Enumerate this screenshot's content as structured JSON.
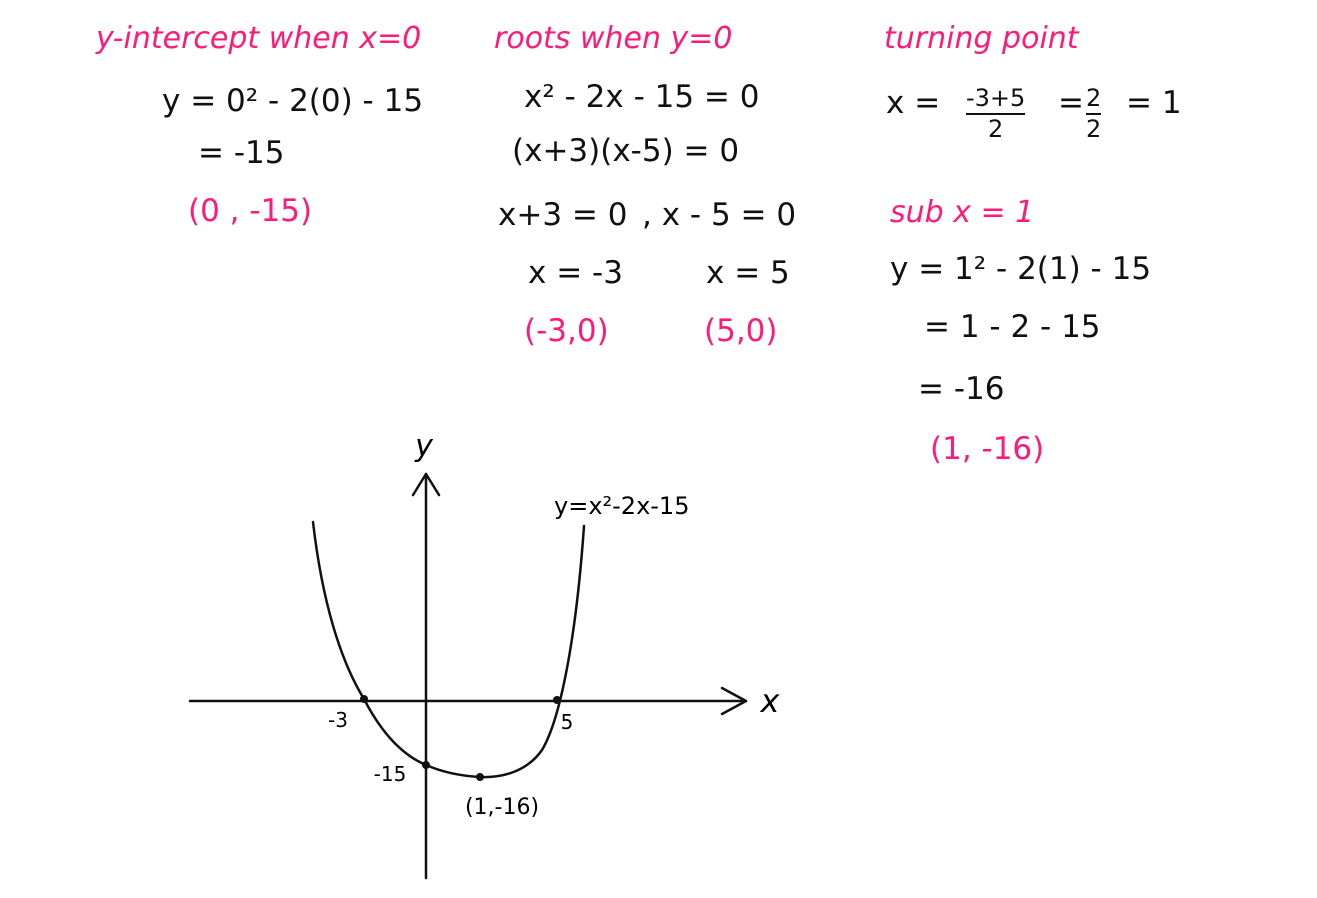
{
  "colors": {
    "accent": "#ff1a7a",
    "ink": "#111111"
  },
  "y_intercept": {
    "heading": "y-intercept when x=0",
    "line1": "y = 0² - 2(0) - 15",
    "line2": "= -15",
    "answer": "(0 , -15)"
  },
  "roots": {
    "heading": "roots when y=0",
    "line1": "x² - 2x - 15 = 0",
    "line2": "(x+3)(x-5) = 0",
    "line3_left": "x+3 = 0",
    "line3_right": ", x - 5 = 0",
    "sol_left": "x = -3",
    "sol_right": "x = 5",
    "ans_left": "(-3,0)",
    "ans_right": "(5,0)"
  },
  "turning_point": {
    "heading": "turning point",
    "x_label": "x =",
    "frac1_num": "-3+5",
    "frac1_den": "2",
    "eq1": "=",
    "frac2_num": "2",
    "frac2_den": "2",
    "eq2": "= 1",
    "sub_heading": "sub x = 1",
    "line1": "y = 1² - 2(1) - 15",
    "line2": "= 1 - 2 - 15",
    "line3": "= -16",
    "answer": "(1, -16)"
  },
  "graph": {
    "y_axis_label": "y",
    "x_axis_label": "x",
    "curve_label": "y=x²-2x-15",
    "tick_neg3": "-3",
    "tick_5": "5",
    "tick_neg15": "-15",
    "vertex_label": "(1,-16)"
  }
}
